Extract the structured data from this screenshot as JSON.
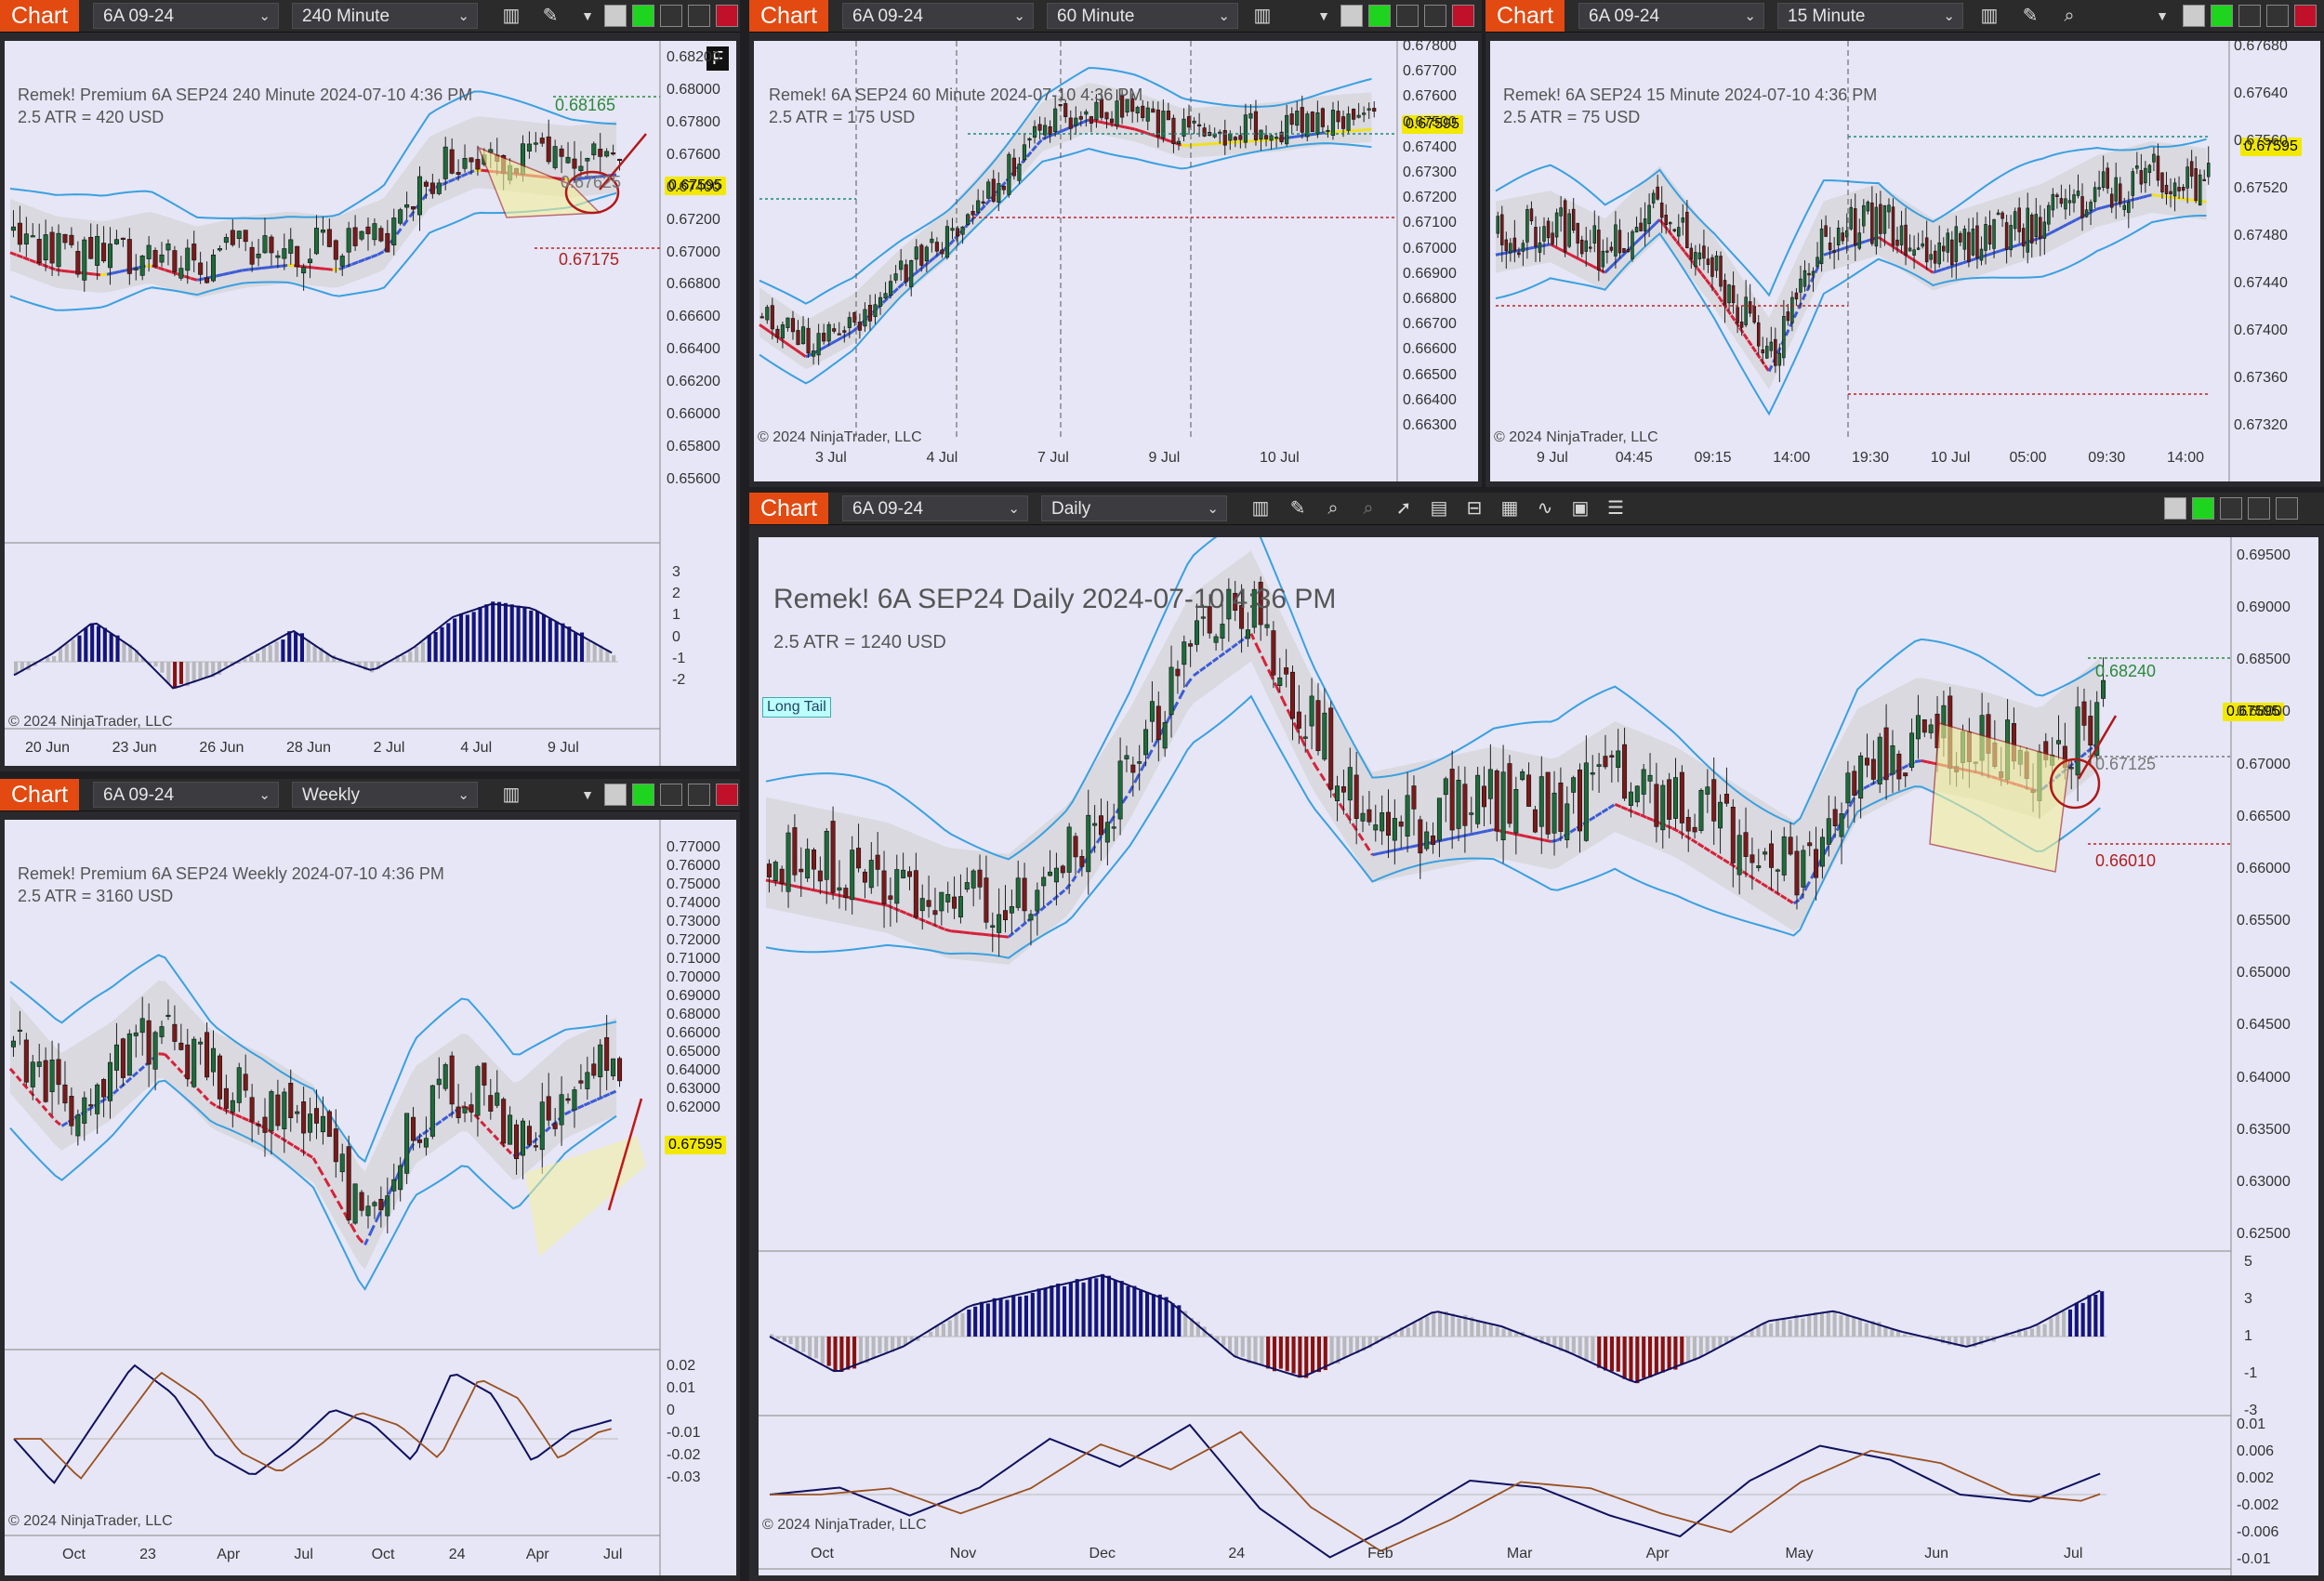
{
  "common": {
    "chart_tab": "Chart",
    "instrument": "6A 09-24",
    "copyright": "© 2024 NinjaTrader, LLC",
    "current_price": "0.67595"
  },
  "windows": {
    "w240": {
      "interval": "240 Minute",
      "title": "Remek!  Premium  6A SEP24  240 Minute  2024-07-10 4:36 PM",
      "atr": "2.5 ATR = 420 USD",
      "flag": "F",
      "levels": {
        "top": "0.68165",
        "mid": "0.67625",
        "bot": "0.67175"
      },
      "price_ticks": [
        "0.68200",
        "0.68000",
        "0.67800",
        "0.67600",
        "0.67400",
        "0.67200",
        "0.67000",
        "0.66800",
        "0.66600",
        "0.66400",
        "0.66200",
        "0.66000",
        "0.65800",
        "0.65600"
      ],
      "osc_ticks": [
        "3",
        "2",
        "1",
        "0",
        "-1",
        "-2"
      ],
      "x_ticks": [
        "20 Jun",
        "23 Jun",
        "26 Jun",
        "28 Jun",
        "2 Jul",
        "4 Jul",
        "9 Jul"
      ]
    },
    "w60": {
      "interval": "60 Minute",
      "title": "Remek!  6A SEP24  60 Minute  2024-07-10 4:36 PM",
      "atr": "2.5 ATR = 175 USD",
      "price_ticks": [
        "0.67800",
        "0.67700",
        "0.67600",
        "0.67500",
        "0.67400",
        "0.67300",
        "0.67200",
        "0.67100",
        "0.67000",
        "0.66900",
        "0.66800",
        "0.66700",
        "0.66600",
        "0.66500",
        "0.66400",
        "0.66300"
      ],
      "x_ticks": [
        "3 Jul",
        "4 Jul",
        "7 Jul",
        "9 Jul",
        "10 Jul"
      ]
    },
    "w15": {
      "interval": "15 Minute",
      "title": "Remek!  6A SEP24  15 Minute  2024-07-10 4:36 PM",
      "atr": "2.5 ATR = 75 USD",
      "price_ticks": [
        "0.67680",
        "0.67640",
        "0.67560",
        "0.67520",
        "0.67480",
        "0.67440",
        "0.67400",
        "0.67360",
        "0.67320"
      ],
      "x_ticks": [
        "9 Jul",
        "04:45",
        "09:15",
        "14:00",
        "19:30",
        "10 Jul",
        "05:00",
        "09:30",
        "14:00"
      ]
    },
    "wW": {
      "interval": "Weekly",
      "title": "Remek!  Premium  6A SEP24  Weekly  2024-07-10 4:36 PM",
      "atr": "2.5 ATR = 3160 USD",
      "price_ticks": [
        "0.77000",
        "0.76000",
        "0.75000",
        "0.74000",
        "0.73000",
        "0.72000",
        "0.71000",
        "0.70000",
        "0.69000",
        "0.68000",
        "0.66000",
        "0.65000",
        "0.64000",
        "0.63000",
        "0.62000"
      ],
      "osc_ticks": [
        "0.02",
        "0.01",
        "0",
        "-0.01",
        "-0.02",
        "-0.03"
      ],
      "x_ticks": [
        "Oct",
        "23",
        "Apr",
        "Jul",
        "Oct",
        "24",
        "Apr",
        "Jul"
      ]
    },
    "wD": {
      "interval": "Daily",
      "title": "Remek!  6A SEP24  Daily  2024-07-10 4:36 PM",
      "atr": "2.5 ATR = 1240 USD",
      "long_tail": "Long Tail",
      "levels": {
        "top": "0.68240",
        "mid": "0.67125",
        "bot": "0.66010"
      },
      "price_ticks": [
        "0.69500",
        "0.69000",
        "0.68500",
        "0.68000",
        "0.67000",
        "0.66500",
        "0.66000",
        "0.65500",
        "0.65000",
        "0.64500",
        "0.64000",
        "0.63500",
        "0.63000",
        "0.62500"
      ],
      "osc1_ticks": [
        "5",
        "3",
        "1",
        "-1",
        "-3"
      ],
      "osc2_ticks": [
        "0.01",
        "0.006",
        "0.002",
        "-0.002",
        "-0.006",
        "-0.01"
      ],
      "x_ticks": [
        "Oct",
        "Nov",
        "Dec",
        "24",
        "Feb",
        "Mar",
        "Apr",
        "May",
        "Jun",
        "Jul"
      ]
    }
  },
  "icons": [
    "bars-icon",
    "draw-pencil-icon",
    "zoom-icon",
    "pointer-icon",
    "properties-icon",
    "templates-icon",
    "indicators-icon",
    "strategies-icon",
    "data-box-icon",
    "list-icon"
  ],
  "colors": {
    "background": "#e6e6f6",
    "band": "#3aa0e0",
    "up_candle": "#1e6b3a",
    "down_candle": "#7a1a1a",
    "trend_up": "#3c5bd6",
    "trend_down": "#d6213a",
    "trend_flat": "#f0e020",
    "osc_pos": "#141480",
    "osc_neg": "#8a1010",
    "tab": "#e24a12"
  },
  "chart_data": [
    {
      "id": "daily",
      "type": "candlestick",
      "ylim": [
        0.622,
        0.697
      ],
      "latest": 0.67595,
      "levels": [
        0.6824,
        0.67125,
        0.6601
      ]
    },
    {
      "id": "240min",
      "type": "candlestick",
      "ylim": [
        0.6552,
        0.6825
      ],
      "latest": 0.67595,
      "levels": [
        0.68165,
        0.67625,
        0.67175
      ]
    },
    {
      "id": "60min",
      "type": "candlestick",
      "ylim": [
        0.6628,
        0.6783
      ],
      "latest": 0.67595
    },
    {
      "id": "15min",
      "type": "candlestick",
      "ylim": [
        0.673,
        0.6771
      ],
      "latest": 0.67595
    },
    {
      "id": "weekly",
      "type": "candlestick",
      "ylim": [
        0.615,
        0.775
      ],
      "latest": 0.67595
    }
  ]
}
